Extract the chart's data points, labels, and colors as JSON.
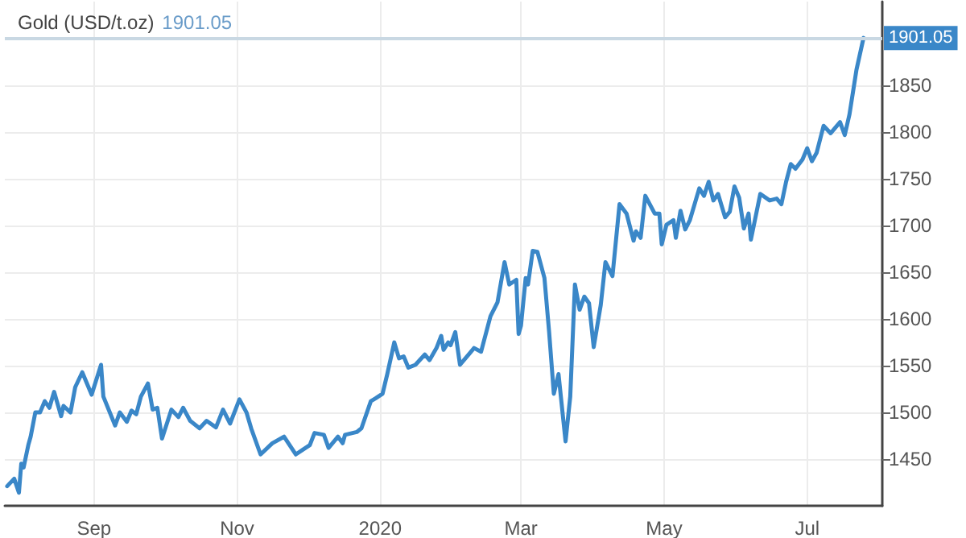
{
  "chart_data": {
    "type": "line",
    "title": "Gold (USD/t.oz)",
    "subtitle": "1901.05",
    "x": [
      "2019-07-26",
      "2019-07-29",
      "2019-07-31",
      "2019-08-01",
      "2019-08-02",
      "2019-08-04",
      "2019-08-05",
      "2019-08-07",
      "2019-08-09",
      "2019-08-11",
      "2019-08-13",
      "2019-08-15",
      "2019-08-18",
      "2019-08-19",
      "2019-08-22",
      "2019-08-24",
      "2019-08-27",
      "2019-08-31",
      "2019-09-04",
      "2019-09-05",
      "2019-09-10",
      "2019-09-12",
      "2019-09-15",
      "2019-09-17",
      "2019-09-19",
      "2019-09-21",
      "2019-09-24",
      "2019-09-26",
      "2019-09-28",
      "2019-09-30",
      "2019-10-04",
      "2019-10-07",
      "2019-10-09",
      "2019-10-12",
      "2019-10-16",
      "2019-10-19",
      "2019-10-23",
      "2019-10-26",
      "2019-10-29",
      "2019-11-02",
      "2019-11-05",
      "2019-11-07",
      "2019-11-11",
      "2019-11-16",
      "2019-11-21",
      "2019-11-26",
      "2019-11-29",
      "2019-12-02",
      "2019-12-04",
      "2019-12-08",
      "2019-12-10",
      "2019-12-14",
      "2019-12-16",
      "2019-12-17",
      "2019-12-22",
      "2019-12-24",
      "2019-12-28",
      "2019-12-30",
      "2020-01-02",
      "2020-01-04",
      "2020-01-07",
      "2020-01-09",
      "2020-01-11",
      "2020-01-13",
      "2020-01-16",
      "2020-01-20",
      "2020-01-22",
      "2020-01-25",
      "2020-01-27",
      "2020-01-28",
      "2020-01-30",
      "2020-01-31",
      "2020-02-02",
      "2020-02-04",
      "2020-02-08",
      "2020-02-10",
      "2020-02-13",
      "2020-02-17",
      "2020-02-20",
      "2020-02-23",
      "2020-02-25",
      "2020-02-28",
      "2020-02-29",
      "2020-03-01",
      "2020-03-03",
      "2020-03-04",
      "2020-03-06",
      "2020-03-08",
      "2020-03-11",
      "2020-03-13",
      "2020-03-15",
      "2020-03-17",
      "2020-03-20",
      "2020-03-22",
      "2020-03-24",
      "2020-03-26",
      "2020-03-28",
      "2020-03-30",
      "2020-04-01",
      "2020-04-04",
      "2020-04-06",
      "2020-04-09",
      "2020-04-12",
      "2020-04-15",
      "2020-04-18",
      "2020-04-19",
      "2020-04-21",
      "2020-04-23",
      "2020-04-27",
      "2020-04-29",
      "2020-04-30",
      "2020-05-02",
      "2020-05-05",
      "2020-05-06",
      "2020-05-08",
      "2020-05-10",
      "2020-05-12",
      "2020-05-16",
      "2020-05-18",
      "2020-05-20",
      "2020-05-22",
      "2020-05-24",
      "2020-05-27",
      "2020-05-29",
      "2020-05-31",
      "2020-06-02",
      "2020-06-04",
      "2020-06-06",
      "2020-06-07",
      "2020-06-11",
      "2020-06-15",
      "2020-06-18",
      "2020-06-20",
      "2020-06-22",
      "2020-06-24",
      "2020-06-26",
      "2020-06-29",
      "2020-07-01",
      "2020-07-03",
      "2020-07-05",
      "2020-07-08",
      "2020-07-11",
      "2020-07-15",
      "2020-07-17",
      "2020-07-19",
      "2020-07-22",
      "2020-07-25"
    ],
    "values": [
      1421,
      1429,
      1414,
      1445,
      1441,
      1465,
      1474,
      1500,
      1500,
      1512,
      1505,
      1522,
      1496,
      1507,
      1500,
      1527,
      1543,
      1519,
      1551,
      1517,
      1486,
      1500,
      1490,
      1502,
      1498,
      1517,
      1531,
      1503,
      1505,
      1472,
      1503,
      1495,
      1505,
      1491,
      1483,
      1491,
      1484,
      1503,
      1488,
      1514,
      1500,
      1483,
      1455,
      1467,
      1474,
      1455,
      1460,
      1465,
      1478,
      1476,
      1462,
      1474,
      1467,
      1476,
      1479,
      1483,
      1512,
      1515,
      1520,
      1541,
      1575,
      1558,
      1560,
      1548,
      1551,
      1562,
      1556,
      1569,
      1582,
      1567,
      1575,
      1572,
      1586,
      1551,
      1563,
      1569,
      1565,
      1603,
      1618,
      1661,
      1637,
      1642,
      1584,
      1593,
      1644,
      1637,
      1673,
      1672,
      1644,
      1586,
      1520,
      1541,
      1469,
      1517,
      1637,
      1610,
      1624,
      1617,
      1570,
      1615,
      1661,
      1646,
      1723,
      1713,
      1684,
      1694,
      1687,
      1732,
      1713,
      1713,
      1680,
      1701,
      1706,
      1687,
      1716,
      1696,
      1706,
      1740,
      1732,
      1747,
      1727,
      1734,
      1709,
      1715,
      1742,
      1730,
      1697,
      1713,
      1685,
      1734,
      1727,
      1729,
      1723,
      1747,
      1766,
      1761,
      1771,
      1783,
      1769,
      1778,
      1807,
      1799,
      1811,
      1797,
      1819,
      1867,
      1901.05
    ],
    "color": "#3a87c8",
    "marker": "none",
    "line_style": "solid",
    "grid": true,
    "xlim": [
      "2019-07-25",
      "2020-08-02"
    ],
    "xticks": [
      {
        "value": "2019-09-01",
        "label": "Sep"
      },
      {
        "value": "2019-11-01",
        "label": "Nov"
      },
      {
        "value": "2020-01-01",
        "label": "2020"
      },
      {
        "value": "2020-03-01",
        "label": "Mar"
      },
      {
        "value": "2020-05-01",
        "label": "May"
      },
      {
        "value": "2020-07-01",
        "label": "Jul"
      }
    ],
    "ylim": [
      1400,
      1940
    ],
    "yticks": [
      1450,
      1500,
      1550,
      1600,
      1650,
      1700,
      1750,
      1800,
      1850
    ],
    "ref_lines": [
      {
        "axis": "y",
        "value": 1901.05,
        "label": "1901.05",
        "color": "#c9d8e3"
      }
    ]
  }
}
